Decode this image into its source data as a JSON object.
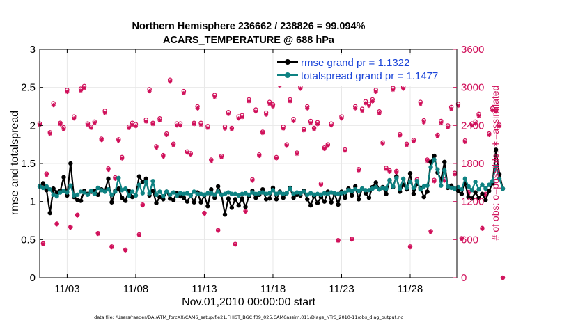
{
  "chart_data": {
    "type": "line",
    "title_line1": "Northern Hemisphere 236662 / 238826 = 99.094%",
    "title_line2": "ACARS_TEMPERATURE @ 688 hPa",
    "xlabel": "Nov.01,2010 00:00:00 start",
    "ylabel_left": "rmse and totalspread",
    "ylabel_right": "# of obs: o=possible; ∗=assimilated",
    "xlim": [
      1,
      31.4
    ],
    "ylim_left": [
      0,
      3
    ],
    "ylim_right": [
      0,
      3600
    ],
    "x_ticks": [
      {
        "day": 3,
        "label": "11/03"
      },
      {
        "day": 8,
        "label": "11/08"
      },
      {
        "day": 13,
        "label": "11/13"
      },
      {
        "day": 18,
        "label": "11/18"
      },
      {
        "day": 23,
        "label": "11/23"
      },
      {
        "day": 28,
        "label": "11/28"
      }
    ],
    "y_ticks_left": [
      {
        "value": 0,
        "label": "0"
      },
      {
        "value": 0.5,
        "label": "0.5"
      },
      {
        "value": 1,
        "label": "1"
      },
      {
        "value": 1.5,
        "label": "1.5"
      },
      {
        "value": 2,
        "label": "2"
      },
      {
        "value": 2.5,
        "label": "2.5"
      },
      {
        "value": 3,
        "label": "3"
      }
    ],
    "y_ticks_right": [
      {
        "value": 0,
        "label": "0"
      },
      {
        "value": 600,
        "label": "600"
      },
      {
        "value": 1200,
        "label": "1200"
      },
      {
        "value": 1800,
        "label": "1800"
      },
      {
        "value": 2400,
        "label": "2400"
      },
      {
        "value": 3000,
        "label": "3000"
      },
      {
        "value": 3600,
        "label": "3600"
      }
    ],
    "legend": [
      {
        "name": "rmse grand pr = 1.1322",
        "color": "#000000"
      },
      {
        "name": "totalspread grand pr = 1.1477",
        "color": "#0e8282"
      }
    ],
    "legend_position": "top-right",
    "footnote": "data file: /Users/raeder/DAI/ATM_forcXX/CAM6_setup/f.e21.FHIST_BGC.f09_025.CAM6assim.011/Diags_NTrS_2010-11/obs_diag_output.nc",
    "colors": {
      "rmse": "#000000",
      "spread": "#0e8282",
      "obs": "#d0105a",
      "grid": "#e8e8e8"
    },
    "series": [
      {
        "name": "rmse",
        "x_start": 1.0,
        "dx": 0.25,
        "values": [
          1.2,
          1.24,
          1.15,
          0.85,
          1.17,
          1.12,
          1.14,
          1.32,
          1.08,
          1.5,
          1.06,
          1.02,
          1.01,
          1.14,
          1.1,
          1.13,
          1.14,
          1.09,
          1.16,
          1.14,
          1.3,
          0.99,
          1.14,
          1.17,
          1.05,
          1.01,
          1.14,
          1.06,
          1.08,
          1.33,
          1.26,
          1.3,
          1.08,
          1.14,
          0.98,
          1.06,
          1.03,
          1.13,
          1.04,
          1.02,
          1.11,
          1.07,
          1.05,
          1.0,
          1.08,
          0.99,
          1.12,
          0.99,
          1.08,
          0.94,
          1.16,
          1.05,
          1.2,
          1.09,
          0.83,
          1.04,
          0.92,
          1.03,
          0.95,
          1.04,
          0.93,
          1.07,
          1.14,
          1.05,
          1.09,
          1.16,
          1.03,
          1.04,
          1.18,
          1.03,
          1.13,
          1.05,
          1.11,
          1.18,
          1.05,
          1.09,
          1.08,
          1.14,
          1.03,
          0.95,
          1.07,
          0.98,
          1.06,
          1.0,
          1.13,
          0.99,
          1.1,
          0.96,
          1.13,
          1.05,
          1.17,
          1.08,
          1.2,
          1.03,
          1.17,
          1.11,
          1.05,
          1.19,
          1.25,
          1.16,
          1.19,
          1.1,
          1.28,
          1.19,
          1.33,
          1.13,
          1.22,
          1.16,
          1.37,
          1.1,
          1.23,
          1.18,
          1.06,
          1.13,
          1.52,
          1.6,
          1.38,
          1.29,
          1.52,
          1.18,
          1.21,
          1.17,
          1.14,
          1.1,
          1.24,
          1.06,
          1.04,
          1.12,
          1.05,
          1.1,
          1.02,
          1.14,
          1.24,
          1.68,
          1.36,
          1.17
        ]
      },
      {
        "name": "totalspread",
        "x_start": 1.0,
        "dx": 0.25,
        "values": [
          1.2,
          1.18,
          1.2,
          1.16,
          1.09,
          1.07,
          1.12,
          1.14,
          1.12,
          1.21,
          1.08,
          1.09,
          1.13,
          1.12,
          1.09,
          1.14,
          1.1,
          1.18,
          1.15,
          1.13,
          1.16,
          1.09,
          1.13,
          1.31,
          1.15,
          1.17,
          1.08,
          1.13,
          1.08,
          1.22,
          1.11,
          1.26,
          1.11,
          1.27,
          1.09,
          1.13,
          1.07,
          1.13,
          1.09,
          1.12,
          1.08,
          1.11,
          1.1,
          1.11,
          1.08,
          1.13,
          1.1,
          1.1,
          1.09,
          1.11,
          1.11,
          1.09,
          1.13,
          1.09,
          1.1,
          1.12,
          1.1,
          1.1,
          1.08,
          1.1,
          1.11,
          1.09,
          1.12,
          1.1,
          1.11,
          1.12,
          1.1,
          1.11,
          1.15,
          1.1,
          1.12,
          1.1,
          1.11,
          1.17,
          1.1,
          1.12,
          1.11,
          1.13,
          1.09,
          1.11,
          1.09,
          1.1,
          1.09,
          1.11,
          1.1,
          1.12,
          1.11,
          1.1,
          1.11,
          1.12,
          1.15,
          1.14,
          1.16,
          1.14,
          1.17,
          1.15,
          1.15,
          1.17,
          1.19,
          1.16,
          1.18,
          1.17,
          1.28,
          1.2,
          1.31,
          1.17,
          1.3,
          1.18,
          1.26,
          1.18,
          1.27,
          1.16,
          1.2,
          1.21,
          1.45,
          1.55,
          1.42,
          1.21,
          1.41,
          1.2,
          1.18,
          1.17,
          1.19,
          1.16,
          1.3,
          1.2,
          1.15,
          1.26,
          1.16,
          1.22,
          1.17,
          1.22,
          1.27,
          1.46,
          1.3,
          1.17
        ]
      },
      {
        "name": "obs_possible",
        "x_start": 1.0,
        "dx": 0.25,
        "values": [
          2430,
          540,
          1640,
          2290,
          2750,
          850,
          2440,
          2370,
          2960,
          800,
          2540,
          990,
          2980,
          3020,
          2430,
          2380,
          2460,
          700,
          2190,
          2630,
          1720,
          490,
          1580,
          2180,
          1900,
          440,
          2380,
          2440,
          2420,
          680,
          1150,
          2490,
          2970,
          2440,
          2070,
          2510,
          1930,
          2270,
          3120,
          2110,
          2430,
          2430,
          2940,
          1990,
          1960,
          2440,
          2700,
          2440,
          1020,
          2390,
          1860,
          2880,
          750,
          1920,
          2380,
          2610,
          2360,
          530,
          2540,
          2560,
          1050,
          2810,
          1550,
          2650,
          1940,
          2300,
          2600,
          2770,
          2730,
          1900,
          3060,
          2380,
          2100,
          2810,
          2500,
          1970,
          3010,
          2340,
          2700,
          2470,
          2360,
          2450,
          1480,
          2050,
          2100,
          2430,
          3140,
          590,
          2540,
          2020,
          3160,
          610,
          2700,
          1710,
          2660,
          2780,
          2740,
          2810,
          2960,
          2620,
          2130,
          1730,
          1690,
          2990,
          1680,
          2260,
          3010,
          2110,
          490,
          2170,
          1550,
          2770,
          2480,
          1860,
          730,
          1540,
          2250,
          2470,
          1550,
          2400,
          2690,
          1650,
          2740,
          620,
          2160,
          1350,
          2430,
          2460,
          2580,
          780,
          1320,
          2270,
          2670,
          2650,
          2410,
          0
        ]
      },
      {
        "name": "obs_assimilated",
        "x_start": 1.0,
        "dx": 0.25,
        "values": [
          2410,
          530,
          1620,
          2270,
          2720,
          840,
          2420,
          2340,
          2930,
          790,
          2510,
          980,
          2950,
          2990,
          2410,
          2360,
          2440,
          690,
          2170,
          2600,
          1700,
          480,
          1560,
          2160,
          1880,
          430,
          2360,
          2410,
          2390,
          670,
          1140,
          2460,
          2940,
          2420,
          2050,
          2480,
          1910,
          2250,
          3090,
          2090,
          2400,
          2400,
          2910,
          1970,
          1940,
          2420,
          2670,
          2410,
          1010,
          2360,
          1840,
          2850,
          740,
          1900,
          2350,
          2580,
          2340,
          520,
          2510,
          2530,
          1040,
          2780,
          1530,
          2620,
          1920,
          2280,
          2570,
          2740,
          2700,
          1880,
          3030,
          2350,
          2080,
          2780,
          2470,
          1950,
          2980,
          2320,
          2670,
          2440,
          2340,
          2420,
          1460,
          2030,
          2080,
          2400,
          3110,
          580,
          2510,
          2000,
          3130,
          600,
          2670,
          1690,
          2630,
          2750,
          2710,
          2780,
          2930,
          2590,
          2110,
          1710,
          1670,
          2960,
          1660,
          2240,
          2980,
          2090,
          480,
          2150,
          1530,
          2740,
          2450,
          1840,
          720,
          1520,
          2230,
          2440,
          1530,
          2370,
          2660,
          1630,
          2710,
          610,
          2140,
          1330,
          2400,
          2430,
          2550,
          770,
          1300,
          2250,
          2640,
          2620,
          2390,
          0
        ]
      }
    ]
  }
}
